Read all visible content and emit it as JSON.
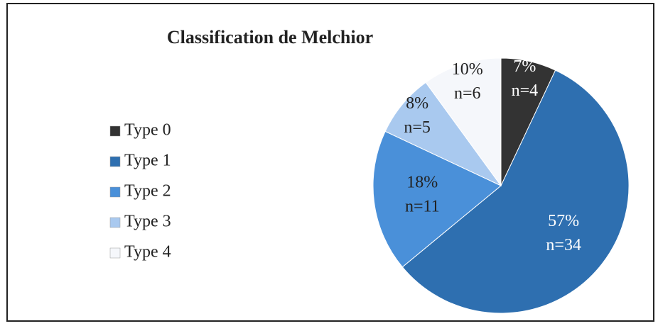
{
  "chart_data": {
    "type": "pie",
    "title": "Classification de Melchior",
    "categories": [
      "Type 0",
      "Type 1",
      "Type 2",
      "Type 3",
      "Type 4"
    ],
    "values": [
      7,
      57,
      18,
      8,
      10
    ],
    "value_labels": [
      "7%",
      "57%",
      "18%",
      "8%",
      "10%"
    ],
    "counts": [
      4,
      34,
      11,
      5,
      6
    ],
    "count_labels": [
      "n=4",
      "n=34",
      "n=11",
      "n=5",
      "n=6"
    ],
    "colors": [
      "#333333",
      "#2e6fb0",
      "#4a90d9",
      "#a9c9ef",
      "#f5f7fb"
    ],
    "label_colors": [
      "#ffffff",
      "#ffffff",
      "#222222",
      "#222222",
      "#222222"
    ],
    "legend": "left"
  }
}
